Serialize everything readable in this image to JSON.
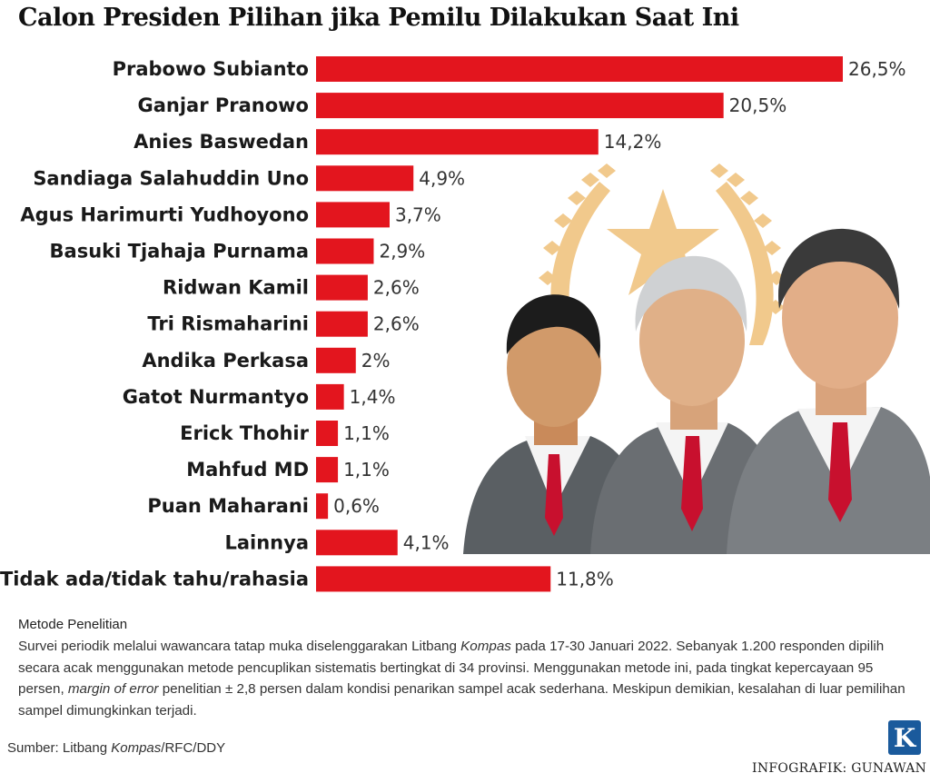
{
  "title": "Calon Presiden Pilihan jika Pemilu Dilakukan Saat Ini",
  "chart_data": {
    "type": "bar",
    "orientation": "horizontal",
    "title": "Calon Presiden Pilihan jika Pemilu Dilakukan Saat Ini",
    "unit": "%",
    "categories": [
      "Prabowo Subianto",
      "Ganjar Pranowo",
      "Anies Baswedan",
      "Sandiaga Salahuddin Uno",
      "Agus Harimurti Yudhoyono",
      "Basuki Tjahaja Purnama",
      "Ridwan Kamil",
      "Tri Rismaharini",
      "Andika Perkasa",
      "Gatot Nurmantyo",
      "Erick Thohir",
      "Mahfud MD",
      "Puan Maharani",
      "Lainnya",
      "Tidak ada/tidak tahu/rahasia"
    ],
    "values": [
      26.5,
      20.5,
      14.2,
      4.9,
      3.7,
      2.9,
      2.6,
      2.6,
      2,
      1.4,
      1.1,
      1.1,
      0.6,
      4.1,
      11.8
    ],
    "value_labels": [
      "26,5%",
      "20,5%",
      "14,2%",
      "4,9%",
      "3,7%",
      "2,9%",
      "2,6%",
      "2,6%",
      "2%",
      "1,4%",
      "1,1%",
      "1,1%",
      "0,6%",
      "4,1%",
      "11,8%"
    ],
    "bar_color": "#e3151e",
    "grid": false,
    "legend": "none"
  },
  "method": {
    "title": "Metode Penelitian",
    "text_1": "Survei periodik melalui wawancara tatap muka diselenggarakan Litbang ",
    "kompas": "Kompas",
    "text_2": " pada 17-30 Januari 2022. Sebanyak 1.200 responden dipilih secara acak menggunakan metode pencuplikan sistematis bertingkat di 34 provinsi. Menggunakan metode ini, pada tingkat kepercayaan 95 persen, ",
    "moe": "margin of error",
    "text_3": " penelitian ± 2,8 persen dalam kondisi penarikan sampel acak sederhana. Meskipun demikian, kesalahan di luar pemilihan sampel dimungkinkan terjadi."
  },
  "source": {
    "prefix": "Sumber: Litbang ",
    "kompas": "Kompas",
    "suffix": "/RFC/DDY"
  },
  "logo_letter": "K",
  "credit": "INFOGRAFIK: GUNAWAN",
  "colors": {
    "accent": "#e3151e",
    "logo": "#1a5a9c",
    "emblem": "#f1c98c"
  }
}
